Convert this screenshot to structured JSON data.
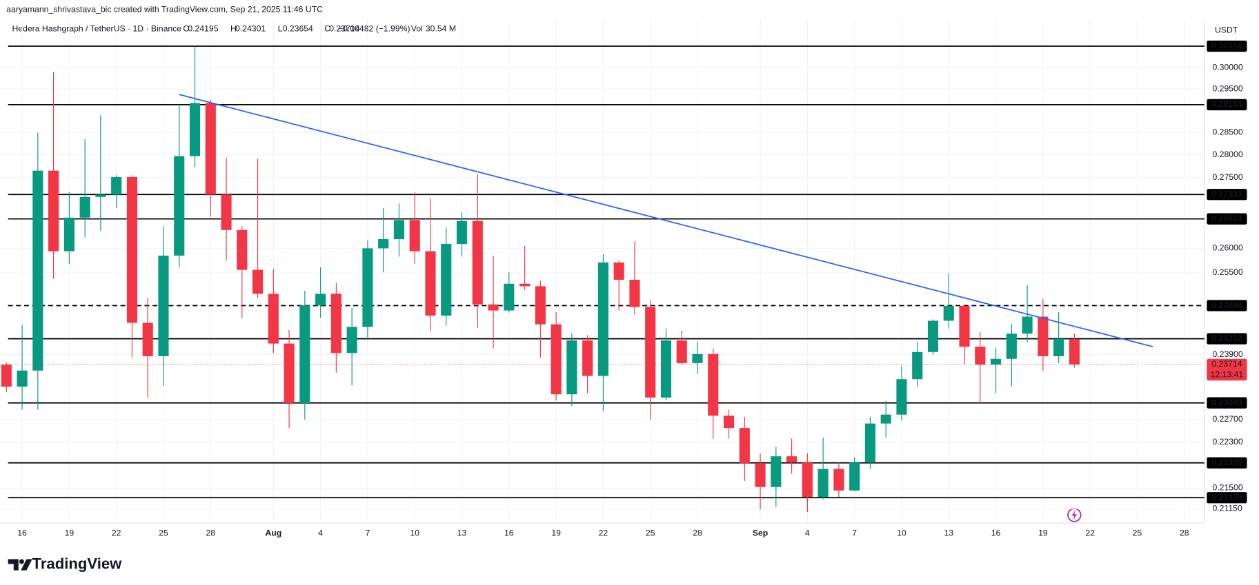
{
  "attribution": "aaryamann_shrivastava_bic created with TradingView.com, Sep 21, 2025 11:46 UTC",
  "brand": "TradingView",
  "chart_data": {
    "type": "candlestick",
    "title": "Hedera Hashgraph / TetherUS · 1D · Binance",
    "legend_values": [
      {
        "label": "O",
        "value": 0.24195
      },
      {
        "label": "H",
        "value": 0.24301
      },
      {
        "label": "L",
        "value": 0.23654
      },
      {
        "label": "C",
        "value": 0.23714
      }
    ],
    "change": "−0.00482 (−1.99%)",
    "volume_label": "Vol",
    "volume": "30.54 M",
    "currency": "USDT",
    "categories": [
      null,
      "16",
      null,
      null,
      "19",
      null,
      null,
      "22",
      null,
      null,
      "25",
      null,
      null,
      "28",
      null,
      null,
      null,
      "Aug",
      null,
      null,
      "4",
      null,
      null,
      "7",
      null,
      null,
      "10",
      null,
      null,
      "13",
      null,
      null,
      "16",
      null,
      null,
      "19",
      null,
      null,
      "22",
      null,
      null,
      "25",
      null,
      null,
      "28",
      null,
      null,
      null,
      "Sep",
      null,
      null,
      "4",
      null,
      null,
      "7",
      null,
      null,
      "10",
      null,
      null,
      "13",
      null,
      null,
      "16",
      null,
      null,
      "19",
      null,
      null,
      "22",
      null,
      null,
      "25",
      null,
      null,
      "28"
    ],
    "open": [
      0.2371,
      0.233,
      0.236,
      0.2765,
      0.2594,
      0.2664,
      0.2708,
      0.2713,
      0.2751,
      0.2451,
      0.2387,
      0.2585,
      0.2797,
      0.2917,
      0.2713,
      0.2638,
      0.2556,
      0.2508,
      0.2411,
      0.23,
      0.2485,
      0.2508,
      0.2393,
      0.2443,
      0.26,
      0.2619,
      0.2659,
      0.2594,
      0.2465,
      0.2609,
      0.2657,
      0.2487,
      0.2475,
      0.2528,
      0.2523,
      0.2448,
      0.2316,
      0.2417,
      0.235,
      0.2571,
      0.2536,
      0.2482,
      0.231,
      0.2417,
      0.2374,
      0.2391,
      0.2277,
      0.2255,
      0.2193,
      0.2152,
      0.2205,
      0.2194,
      0.2135,
      0.2183,
      0.2146,
      0.2194,
      0.2263,
      0.2279,
      0.2344,
      0.2395,
      0.2455,
      0.2484,
      0.2405,
      0.2371,
      0.2382,
      0.243,
      0.2463,
      0.2387,
      0.24195,
      null,
      null,
      null,
      null,
      null,
      null,
      null
    ],
    "high": [
      0.2375,
      0.2447,
      0.2849,
      0.299,
      0.2718,
      0.2835,
      0.2889,
      0.2755,
      0.2755,
      0.25,
      0.2645,
      0.2914,
      0.3051,
      0.2924,
      0.2794,
      0.2646,
      0.2791,
      0.2558,
      0.2437,
      0.2514,
      0.2561,
      0.253,
      0.248,
      0.2616,
      0.2684,
      0.2694,
      0.2718,
      0.2704,
      0.2643,
      0.2675,
      0.2758,
      0.2585,
      0.2551,
      0.2605,
      0.2534,
      0.2472,
      0.243,
      0.2427,
      0.2587,
      0.2575,
      0.2614,
      0.2495,
      0.244,
      0.2436,
      0.2415,
      0.2402,
      0.2288,
      0.2275,
      0.221,
      0.2222,
      0.2236,
      0.221,
      0.2238,
      0.2194,
      0.2203,
      0.2275,
      0.2304,
      0.2369,
      0.2414,
      0.2458,
      0.2549,
      0.2487,
      0.2433,
      0.2403,
      0.2448,
      0.2525,
      0.2498,
      0.2472,
      0.24301,
      null,
      null,
      null,
      null,
      null,
      null,
      null
    ],
    "low": [
      0.232,
      0.2288,
      0.2288,
      0.2538,
      0.2568,
      0.2623,
      0.2636,
      0.2684,
      0.2385,
      0.2309,
      0.2332,
      0.2561,
      0.2772,
      0.2666,
      0.2575,
      0.246,
      0.2499,
      0.2393,
      0.2255,
      0.227,
      0.2461,
      0.2356,
      0.2332,
      0.2418,
      0.2551,
      0.2583,
      0.2568,
      0.2434,
      0.2446,
      0.2583,
      0.2441,
      0.2402,
      0.2471,
      0.2515,
      0.2384,
      0.2305,
      0.2295,
      0.2318,
      0.2285,
      0.2475,
      0.2467,
      0.227,
      0.2305,
      0.2372,
      0.2354,
      0.2236,
      0.2236,
      0.2162,
      0.2114,
      0.2118,
      0.2175,
      0.211,
      0.2131,
      0.2135,
      0.2145,
      0.2183,
      0.2238,
      0.2268,
      0.233,
      0.239,
      0.244,
      0.2371,
      0.23,
      0.2318,
      0.233,
      0.2414,
      0.2359,
      0.2374,
      0.23654,
      null,
      null,
      null,
      null,
      null,
      null,
      null
    ],
    "close": [
      0.233,
      0.236,
      0.2765,
      0.2594,
      0.2664,
      0.2708,
      0.2713,
      0.2751,
      0.2451,
      0.2387,
      0.2585,
      0.2797,
      0.2917,
      0.2713,
      0.2638,
      0.2556,
      0.2508,
      0.2411,
      0.23,
      0.2485,
      0.2508,
      0.2393,
      0.2443,
      0.26,
      0.2619,
      0.2659,
      0.2594,
      0.2465,
      0.2609,
      0.2657,
      0.2487,
      0.2475,
      0.2528,
      0.2523,
      0.2448,
      0.2316,
      0.2417,
      0.235,
      0.2571,
      0.2536,
      0.2482,
      0.231,
      0.2417,
      0.2374,
      0.2391,
      0.2277,
      0.2255,
      0.2193,
      0.2152,
      0.2205,
      0.2194,
      0.2135,
      0.2183,
      0.2146,
      0.2194,
      0.2263,
      0.2279,
      0.2344,
      0.2395,
      0.2455,
      0.2484,
      0.2405,
      0.2371,
      0.2382,
      0.243,
      0.2463,
      0.2387,
      0.242,
      0.23714,
      null,
      null,
      null,
      null,
      null,
      null,
      null
    ],
    "up_color": "#089981",
    "down_color": "#f23645",
    "ylim": [
      0.2094,
      0.3117
    ],
    "log_scale": true,
    "grid": true,
    "yticks": [
      {
        "value": 0.3,
        "label": "0.30000"
      },
      {
        "value": 0.295,
        "label": "0.29500"
      },
      {
        "value": 0.285,
        "label": "0.28500"
      },
      {
        "value": 0.28,
        "label": "0.28000"
      },
      {
        "value": 0.275,
        "label": "0.27500"
      },
      {
        "value": 0.26,
        "label": "0.26000"
      },
      {
        "value": 0.255,
        "label": "0.25500"
      },
      {
        "value": 0.239,
        "label": "0.23900"
      },
      {
        "value": 0.227,
        "label": "0.22700"
      },
      {
        "value": 0.223,
        "label": "0.22300"
      },
      {
        "value": 0.215,
        "label": "0.21500"
      },
      {
        "value": 0.2115,
        "label": "0.21150"
      }
    ],
    "levels": [
      {
        "value": 0.30516,
        "style": "solid"
      },
      {
        "value": 0.29134,
        "style": "solid"
      },
      {
        "value": 0.27133,
        "style": "solid"
      },
      {
        "value": 0.26613,
        "style": "solid"
      },
      {
        "value": 0.24846,
        "style": "dashed"
      },
      {
        "value": 0.24202,
        "style": "solid"
      },
      {
        "value": 0.23003,
        "style": "solid"
      },
      {
        "value": 0.21935,
        "style": "solid"
      },
      {
        "value": 0.21339,
        "style": "solid"
      }
    ],
    "trend_line": {
      "start": [
        11,
        0.2937
      ],
      "end": [
        73,
        0.2405
      ],
      "color": "#2962ff"
    },
    "last_price": 0.23714,
    "countdown": "12:13:41"
  }
}
